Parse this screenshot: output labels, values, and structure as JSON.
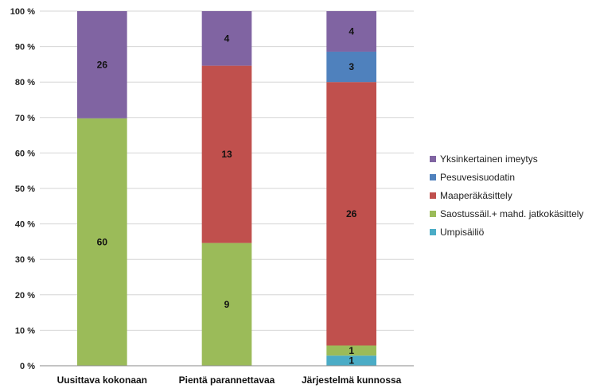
{
  "chart_data": {
    "type": "bar",
    "stacked": "percent",
    "categories": [
      "Uusittava kokonaan",
      "Pientä parannettavaa",
      "Järjestelmä kunnossa"
    ],
    "series": [
      {
        "name": "Umpisäiliö",
        "values": [
          0,
          0,
          1
        ],
        "color": "#4bacc6"
      },
      {
        "name": "Saostussäil.+ mahd. jatkokäsittely",
        "values": [
          60,
          9,
          1
        ],
        "color": "#9bbb59"
      },
      {
        "name": "Maaperäkäsittely",
        "values": [
          0,
          13,
          26
        ],
        "color": "#c0504d"
      },
      {
        "name": "Pesuvesisuodatin",
        "values": [
          0,
          0,
          3
        ],
        "color": "#4f81bd"
      },
      {
        "name": "Yksinkertainen imeytys",
        "values": [
          26,
          4,
          4
        ],
        "color": "#8064a2"
      }
    ],
    "yticks": [
      "0 %",
      "10 %",
      "20 %",
      "30 %",
      "40 %",
      "50 %",
      "60 %",
      "70 %",
      "80 %",
      "90 %",
      "100 %"
    ],
    "ylim": [
      0,
      100
    ],
    "legend_order": [
      "Yksinkertainen imeytys",
      "Pesuvesisuodatin",
      "Maaperäkäsittely",
      "Saostussäil.+ mahd. jatkokäsittely",
      "Umpisäiliö"
    ],
    "legend": "right",
    "grid": true,
    "title": "",
    "xlabel": "",
    "ylabel": ""
  }
}
